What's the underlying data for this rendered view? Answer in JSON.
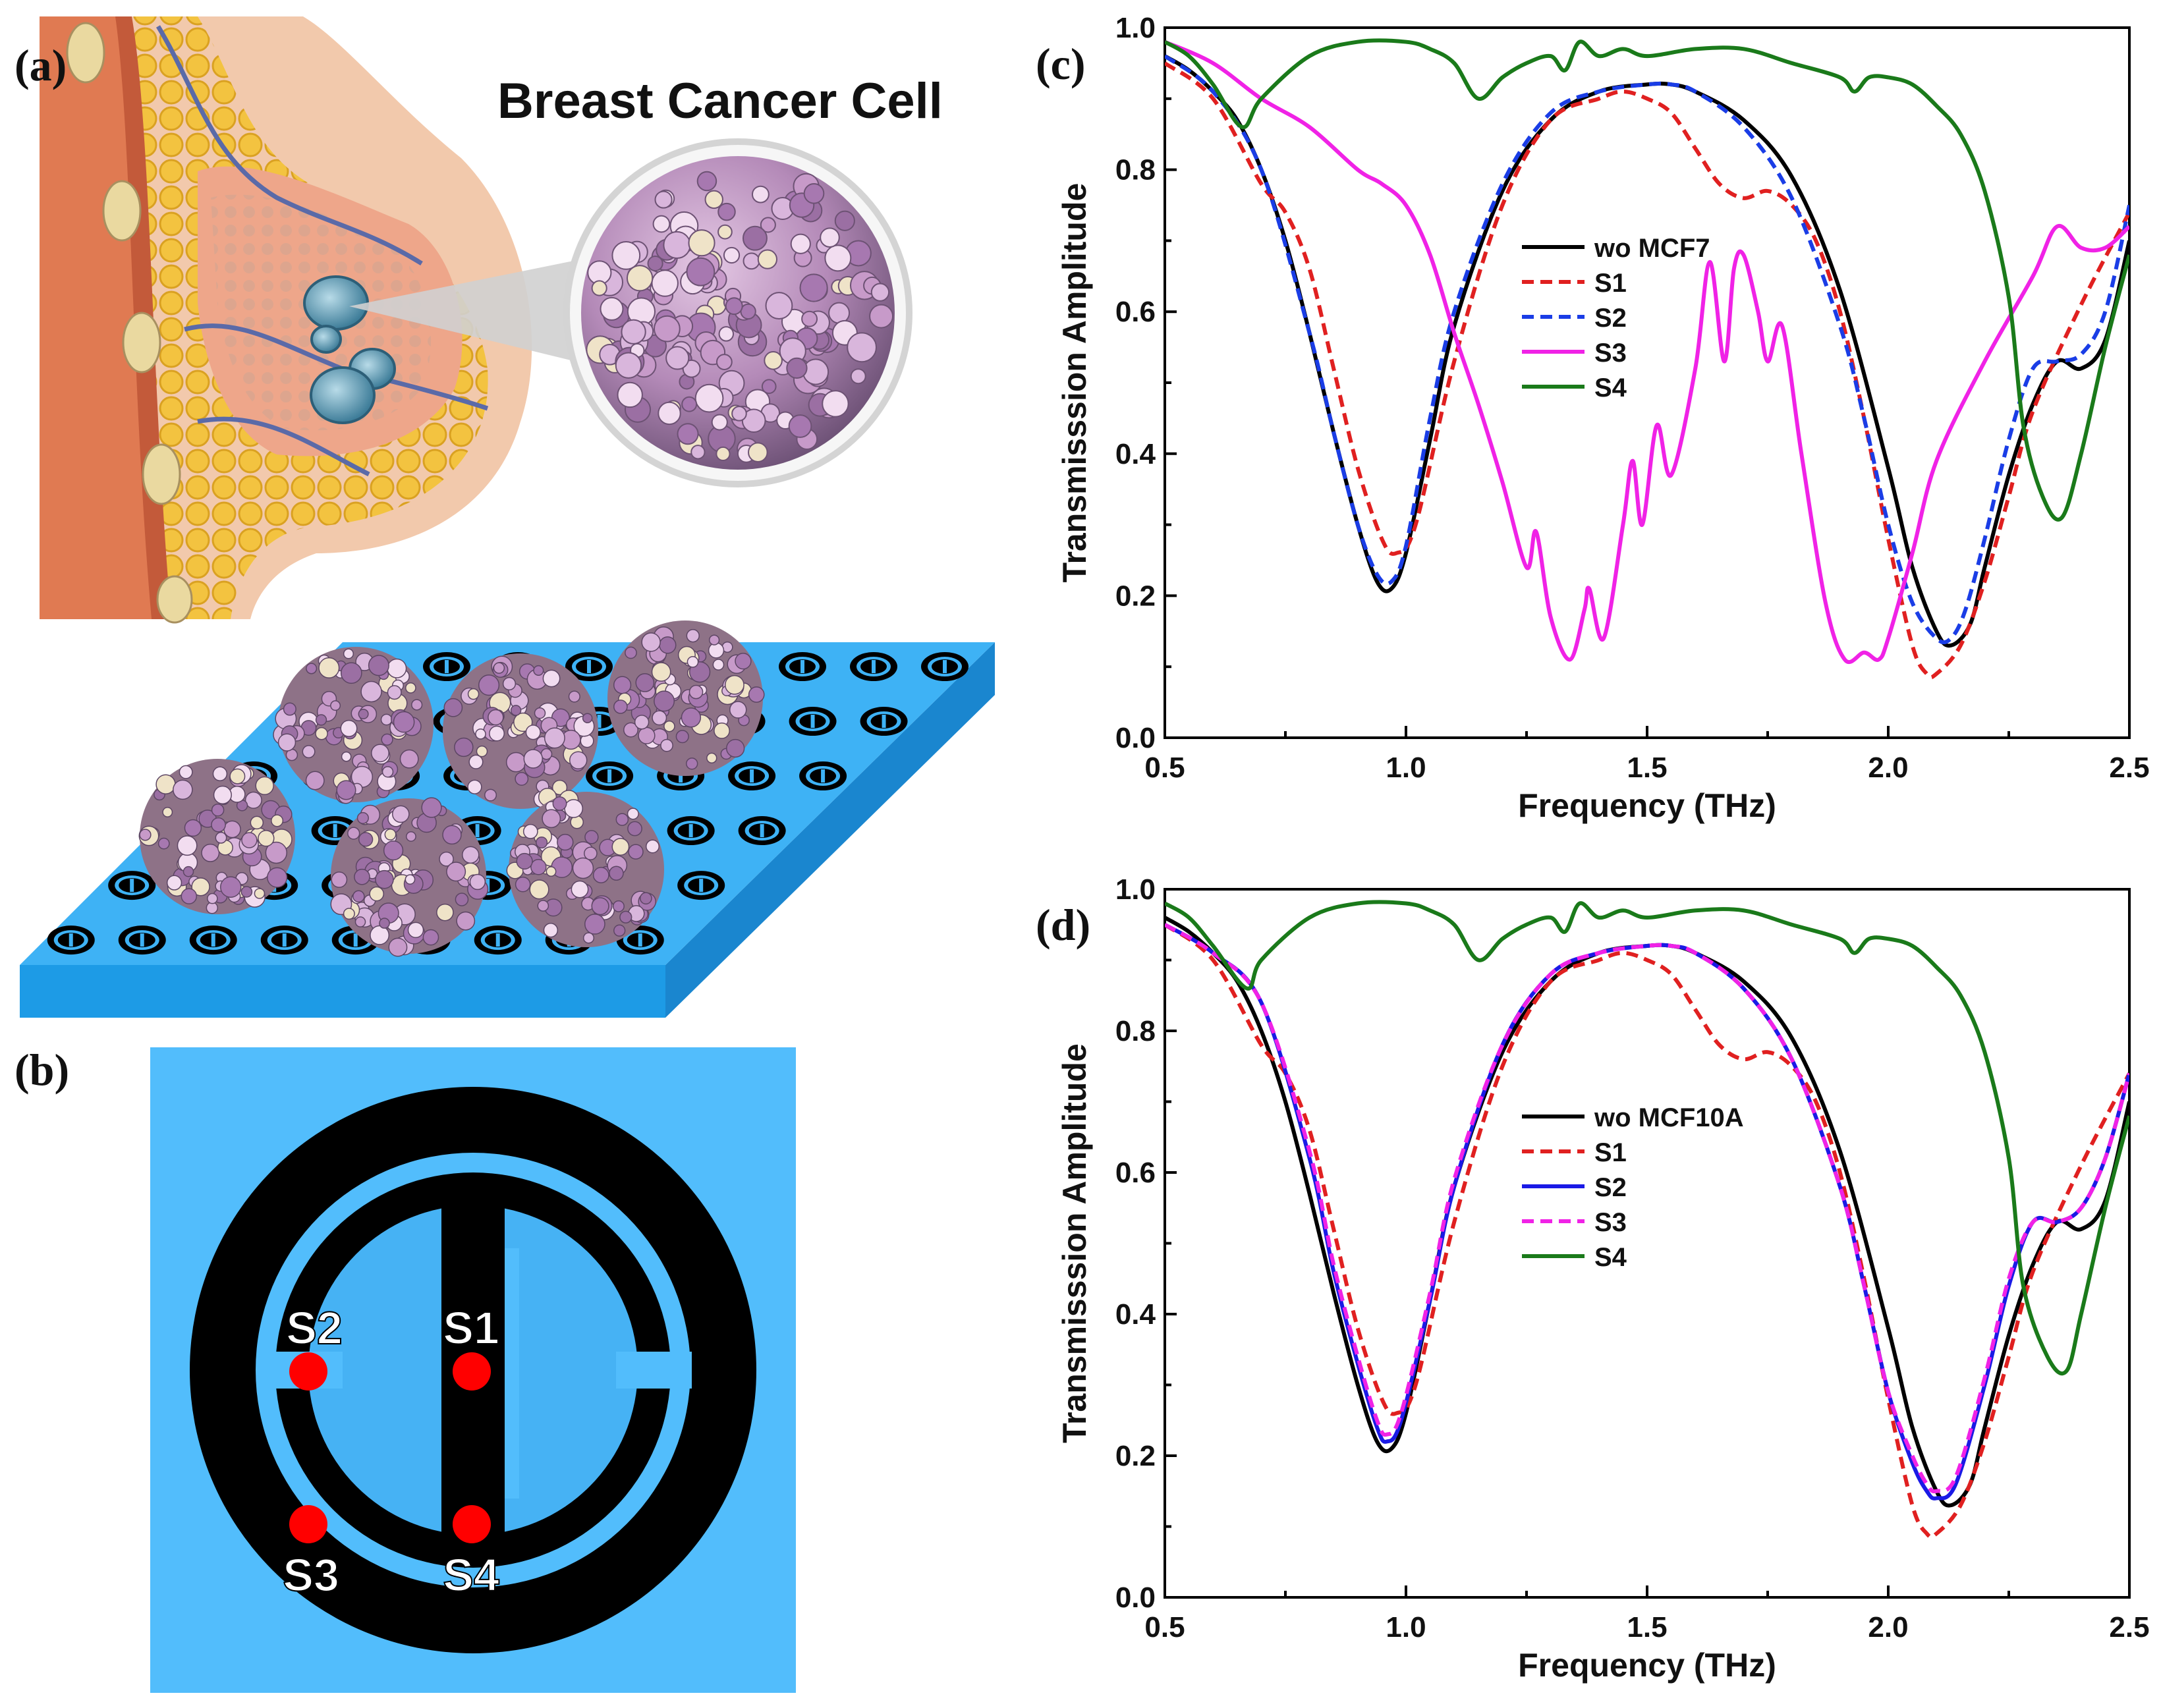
{
  "panels": {
    "a": {
      "label": "(a)",
      "title": "Breast Cancer Cell"
    },
    "b": {
      "label": "(b)",
      "points": [
        "S1",
        "S2",
        "S3",
        "S4"
      ],
      "colors": {
        "background": "#52bdfc",
        "ring": "#000000",
        "inner": "#46b2f4",
        "marker": "#ff0000",
        "marker_label": "#ffffff"
      }
    },
    "c": {
      "label": "(c)"
    },
    "d": {
      "label": "(d)"
    }
  },
  "chart_data": [
    {
      "id": "c",
      "type": "line",
      "xlabel": "Frequency (THz)",
      "ylabel": "Transmisssion Amplitude",
      "xlim": [
        0.5,
        2.5
      ],
      "ylim": [
        0.0,
        1.0
      ],
      "xticks": [
        0.5,
        1.0,
        1.5,
        2.0,
        2.5
      ],
      "yticks": [
        0.0,
        0.2,
        0.4,
        0.6,
        0.8,
        1.0
      ],
      "legend_position": "center",
      "series": [
        {
          "name": "wo MCF7",
          "color": "#000000",
          "dash": "solid",
          "x": [
            0.5,
            0.55,
            0.6,
            0.65,
            0.7,
            0.75,
            0.8,
            0.85,
            0.9,
            0.94,
            0.97,
            1.0,
            1.05,
            1.1,
            1.2,
            1.3,
            1.4,
            1.5,
            1.55,
            1.6,
            1.7,
            1.8,
            1.9,
            2.0,
            2.05,
            2.1,
            2.13,
            2.17,
            2.2,
            2.25,
            2.3,
            2.35,
            2.4,
            2.45,
            2.5
          ],
          "y": [
            0.96,
            0.94,
            0.91,
            0.87,
            0.8,
            0.7,
            0.57,
            0.43,
            0.3,
            0.22,
            0.21,
            0.26,
            0.42,
            0.58,
            0.77,
            0.87,
            0.91,
            0.92,
            0.92,
            0.91,
            0.87,
            0.79,
            0.63,
            0.38,
            0.24,
            0.15,
            0.13,
            0.16,
            0.24,
            0.37,
            0.47,
            0.53,
            0.52,
            0.56,
            0.7
          ]
        },
        {
          "name": "S1",
          "color": "#e02020",
          "dash": "dashed",
          "x": [
            0.5,
            0.6,
            0.7,
            0.75,
            0.8,
            0.85,
            0.9,
            0.95,
            0.98,
            1.02,
            1.1,
            1.2,
            1.3,
            1.4,
            1.45,
            1.5,
            1.55,
            1.6,
            1.65,
            1.7,
            1.75,
            1.8,
            1.85,
            1.9,
            1.95,
            2.0,
            2.05,
            2.08,
            2.1,
            2.15,
            2.2,
            2.25,
            2.3,
            2.4,
            2.5
          ],
          "y": [
            0.95,
            0.9,
            0.78,
            0.74,
            0.66,
            0.52,
            0.38,
            0.28,
            0.26,
            0.3,
            0.53,
            0.75,
            0.87,
            0.9,
            0.91,
            0.9,
            0.88,
            0.83,
            0.78,
            0.76,
            0.77,
            0.75,
            0.7,
            0.6,
            0.45,
            0.28,
            0.13,
            0.09,
            0.09,
            0.13,
            0.22,
            0.34,
            0.46,
            0.61,
            0.74
          ]
        },
        {
          "name": "S2",
          "color": "#1a3de6",
          "dash": "dashed",
          "x": [
            0.5,
            0.6,
            0.7,
            0.8,
            0.85,
            0.9,
            0.94,
            0.97,
            1.0,
            1.05,
            1.1,
            1.2,
            1.3,
            1.4,
            1.5,
            1.55,
            1.6,
            1.7,
            1.8,
            1.9,
            1.95,
            2.0,
            2.05,
            2.1,
            2.13,
            2.16,
            2.2,
            2.25,
            2.3,
            2.35,
            2.4,
            2.45,
            2.5
          ],
          "y": [
            0.96,
            0.91,
            0.8,
            0.57,
            0.43,
            0.3,
            0.23,
            0.22,
            0.27,
            0.45,
            0.6,
            0.78,
            0.88,
            0.91,
            0.92,
            0.92,
            0.91,
            0.86,
            0.76,
            0.58,
            0.45,
            0.3,
            0.19,
            0.14,
            0.14,
            0.18,
            0.28,
            0.42,
            0.52,
            0.53,
            0.54,
            0.6,
            0.75
          ]
        },
        {
          "name": "S3",
          "color": "#f022e6",
          "dash": "solid",
          "x": [
            0.5,
            0.6,
            0.7,
            0.8,
            0.9,
            0.95,
            1.0,
            1.05,
            1.1,
            1.15,
            1.2,
            1.25,
            1.27,
            1.3,
            1.34,
            1.37,
            1.38,
            1.41,
            1.45,
            1.47,
            1.49,
            1.52,
            1.55,
            1.6,
            1.63,
            1.66,
            1.68,
            1.7,
            1.73,
            1.75,
            1.78,
            1.82,
            1.87,
            1.91,
            1.95,
            1.98,
            2.0,
            2.05,
            2.1,
            2.2,
            2.3,
            2.35,
            2.4,
            2.45,
            2.5
          ],
          "y": [
            0.98,
            0.95,
            0.9,
            0.86,
            0.8,
            0.78,
            0.75,
            0.68,
            0.57,
            0.47,
            0.36,
            0.24,
            0.29,
            0.17,
            0.11,
            0.18,
            0.21,
            0.14,
            0.3,
            0.39,
            0.3,
            0.44,
            0.37,
            0.52,
            0.67,
            0.53,
            0.66,
            0.68,
            0.6,
            0.53,
            0.58,
            0.4,
            0.19,
            0.11,
            0.12,
            0.11,
            0.14,
            0.26,
            0.39,
            0.53,
            0.65,
            0.72,
            0.69,
            0.69,
            0.72
          ]
        },
        {
          "name": "S4",
          "color": "#1a7a1a",
          "dash": "solid",
          "x": [
            0.5,
            0.55,
            0.6,
            0.66,
            0.7,
            0.8,
            0.9,
            1.0,
            1.05,
            1.1,
            1.15,
            1.2,
            1.25,
            1.3,
            1.33,
            1.36,
            1.4,
            1.45,
            1.5,
            1.6,
            1.7,
            1.8,
            1.9,
            1.93,
            1.96,
            2.0,
            2.05,
            2.1,
            2.15,
            2.2,
            2.25,
            2.28,
            2.32,
            2.36,
            2.4,
            2.45,
            2.5
          ],
          "y": [
            0.98,
            0.96,
            0.92,
            0.86,
            0.9,
            0.96,
            0.98,
            0.98,
            0.97,
            0.95,
            0.9,
            0.93,
            0.95,
            0.96,
            0.94,
            0.98,
            0.96,
            0.97,
            0.96,
            0.97,
            0.97,
            0.95,
            0.93,
            0.91,
            0.93,
            0.93,
            0.92,
            0.89,
            0.85,
            0.77,
            0.62,
            0.44,
            0.34,
            0.31,
            0.4,
            0.55,
            0.68
          ]
        }
      ]
    },
    {
      "id": "d",
      "type": "line",
      "xlabel": "Frequency (THz)",
      "ylabel": "Transmisssion Amplitude",
      "xlim": [
        0.5,
        2.5
      ],
      "ylim": [
        0.0,
        1.0
      ],
      "xticks": [
        0.5,
        1.0,
        1.5,
        2.0,
        2.5
      ],
      "yticks": [
        0.0,
        0.2,
        0.4,
        0.6,
        0.8,
        1.0
      ],
      "legend_position": "center",
      "series": [
        {
          "name": "wo MCF10A",
          "color": "#000000",
          "dash": "solid",
          "x": [
            0.5,
            0.55,
            0.6,
            0.65,
            0.7,
            0.75,
            0.8,
            0.85,
            0.9,
            0.94,
            0.97,
            1.0,
            1.05,
            1.1,
            1.2,
            1.3,
            1.4,
            1.5,
            1.55,
            1.6,
            1.7,
            1.8,
            1.9,
            2.0,
            2.05,
            2.1,
            2.13,
            2.17,
            2.2,
            2.25,
            2.3,
            2.35,
            2.4,
            2.45,
            2.5
          ],
          "y": [
            0.96,
            0.94,
            0.91,
            0.87,
            0.8,
            0.7,
            0.57,
            0.43,
            0.3,
            0.22,
            0.21,
            0.26,
            0.42,
            0.58,
            0.77,
            0.87,
            0.91,
            0.92,
            0.92,
            0.91,
            0.87,
            0.79,
            0.63,
            0.38,
            0.24,
            0.15,
            0.13,
            0.16,
            0.24,
            0.37,
            0.47,
            0.53,
            0.52,
            0.56,
            0.7
          ]
        },
        {
          "name": "S1",
          "color": "#e02020",
          "dash": "dashed",
          "x": [
            0.5,
            0.6,
            0.7,
            0.75,
            0.8,
            0.85,
            0.9,
            0.95,
            0.98,
            1.02,
            1.1,
            1.2,
            1.3,
            1.4,
            1.45,
            1.5,
            1.55,
            1.6,
            1.65,
            1.7,
            1.75,
            1.8,
            1.85,
            1.9,
            1.95,
            2.0,
            2.05,
            2.08,
            2.1,
            2.15,
            2.2,
            2.25,
            2.3,
            2.4,
            2.5
          ],
          "y": [
            0.95,
            0.9,
            0.78,
            0.74,
            0.66,
            0.52,
            0.38,
            0.28,
            0.26,
            0.3,
            0.53,
            0.75,
            0.87,
            0.9,
            0.91,
            0.9,
            0.88,
            0.83,
            0.78,
            0.76,
            0.77,
            0.75,
            0.7,
            0.6,
            0.45,
            0.28,
            0.13,
            0.09,
            0.09,
            0.13,
            0.22,
            0.34,
            0.46,
            0.61,
            0.74
          ]
        },
        {
          "name": "S2",
          "color": "#1a1ae6",
          "dash": "solid",
          "x": [
            0.5,
            0.6,
            0.7,
            0.8,
            0.85,
            0.9,
            0.94,
            0.96,
            0.99,
            1.05,
            1.1,
            1.2,
            1.3,
            1.4,
            1.5,
            1.55,
            1.6,
            1.7,
            1.8,
            1.9,
            1.95,
            2.0,
            2.05,
            2.08,
            2.1,
            2.14,
            2.2,
            2.25,
            2.3,
            2.35,
            2.4,
            2.45,
            2.5
          ],
          "y": [
            0.95,
            0.91,
            0.84,
            0.62,
            0.46,
            0.33,
            0.24,
            0.22,
            0.25,
            0.42,
            0.58,
            0.78,
            0.88,
            0.91,
            0.92,
            0.92,
            0.91,
            0.86,
            0.76,
            0.58,
            0.44,
            0.29,
            0.19,
            0.15,
            0.14,
            0.16,
            0.3,
            0.44,
            0.53,
            0.53,
            0.55,
            0.62,
            0.74
          ]
        },
        {
          "name": "S3",
          "color": "#f022e6",
          "dash": "dashed",
          "x": [
            0.5,
            0.6,
            0.7,
            0.8,
            0.85,
            0.9,
            0.94,
            0.96,
            0.99,
            1.05,
            1.1,
            1.2,
            1.3,
            1.4,
            1.5,
            1.55,
            1.6,
            1.7,
            1.8,
            1.9,
            1.95,
            2.0,
            2.05,
            2.08,
            2.1,
            2.14,
            2.2,
            2.25,
            2.3,
            2.35,
            2.4,
            2.45,
            2.5
          ],
          "y": [
            0.95,
            0.91,
            0.84,
            0.63,
            0.47,
            0.34,
            0.25,
            0.23,
            0.26,
            0.43,
            0.59,
            0.78,
            0.88,
            0.91,
            0.92,
            0.92,
            0.91,
            0.86,
            0.76,
            0.58,
            0.44,
            0.29,
            0.2,
            0.16,
            0.15,
            0.17,
            0.31,
            0.45,
            0.53,
            0.53,
            0.55,
            0.62,
            0.74
          ]
        },
        {
          "name": "S4",
          "color": "#1a7a1a",
          "dash": "solid",
          "x": [
            0.5,
            0.55,
            0.6,
            0.67,
            0.7,
            0.8,
            0.9,
            1.0,
            1.05,
            1.1,
            1.15,
            1.2,
            1.25,
            1.3,
            1.33,
            1.36,
            1.4,
            1.45,
            1.5,
            1.6,
            1.7,
            1.8,
            1.9,
            1.93,
            1.96,
            2.0,
            2.05,
            2.1,
            2.15,
            2.2,
            2.25,
            2.28,
            2.33,
            2.37,
            2.4,
            2.45,
            2.5
          ],
          "y": [
            0.98,
            0.96,
            0.92,
            0.86,
            0.9,
            0.96,
            0.98,
            0.98,
            0.97,
            0.95,
            0.9,
            0.93,
            0.95,
            0.96,
            0.94,
            0.98,
            0.96,
            0.97,
            0.96,
            0.97,
            0.97,
            0.95,
            0.93,
            0.91,
            0.93,
            0.93,
            0.92,
            0.89,
            0.85,
            0.77,
            0.62,
            0.44,
            0.34,
            0.32,
            0.4,
            0.55,
            0.68
          ]
        }
      ]
    }
  ]
}
